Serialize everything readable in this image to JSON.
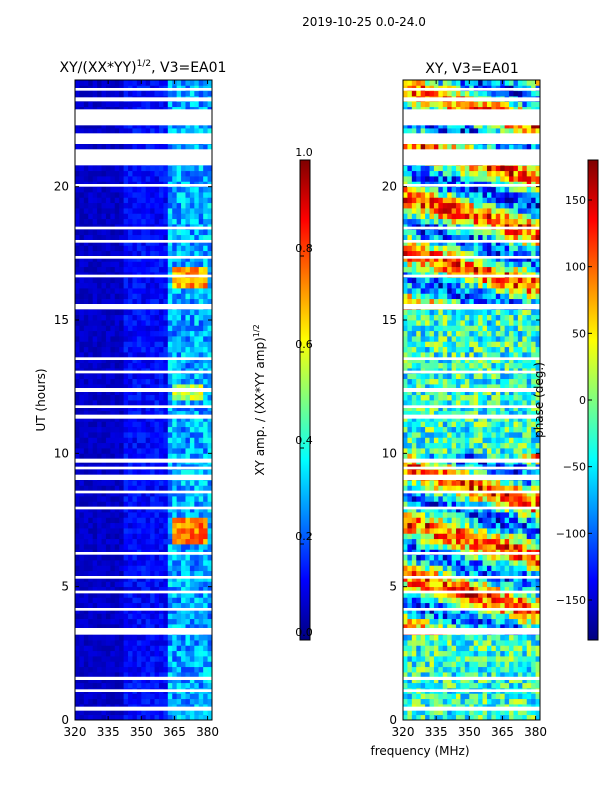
{
  "figure": {
    "suptitle": "2019-10-25 0.0-24.0",
    "xlabel": "frequency (MHz)"
  },
  "colors": {
    "background": "#ffffff",
    "axis": "#000000",
    "jet": [
      "#00007f",
      "#0000ff",
      "#007fff",
      "#00ffff",
      "#7fff7f",
      "#ffff00",
      "#ff7f00",
      "#ff0000",
      "#7f0000"
    ]
  },
  "chart_data": [
    {
      "type": "heatmap",
      "title_main": "XY/(XX*YY)",
      "title_exponent": "1/2",
      "title_suffix": ", V3=EA01",
      "xlabel": "",
      "ylabel": "UT (hours)",
      "xlim": [
        320,
        382
      ],
      "ylim": [
        0,
        24
      ],
      "x_ticks": [
        "320",
        "335",
        "350",
        "365",
        "380"
      ],
      "y_ticks": [
        "0",
        "5",
        "10",
        "15",
        "20"
      ],
      "colorbar": {
        "label_main": "XY amp. / (XX*YY amp)",
        "label_exponent": "1/2",
        "range": [
          0.0,
          1.0
        ],
        "ticks": [
          "0.0",
          "0.2",
          "0.4",
          "0.6",
          "0.8",
          "1.0"
        ]
      },
      "flagged_hour_spans": [
        [
          0.35,
          0.5
        ],
        [
          1.05,
          1.15
        ],
        [
          1.5,
          1.62
        ],
        [
          3.2,
          3.45
        ],
        [
          4.1,
          4.2
        ],
        [
          4.75,
          4.85
        ],
        [
          5.3,
          5.4
        ],
        [
          6.2,
          6.3
        ],
        [
          7.9,
          8.0
        ],
        [
          8.5,
          8.6
        ],
        [
          9.0,
          9.2
        ],
        [
          9.4,
          9.5
        ],
        [
          9.65,
          9.8
        ],
        [
          11.3,
          11.45
        ],
        [
          11.7,
          11.8
        ],
        [
          12.3,
          12.45
        ],
        [
          13.0,
          13.1
        ],
        [
          13.5,
          13.6
        ],
        [
          15.4,
          15.6
        ],
        [
          16.6,
          16.7
        ],
        [
          17.3,
          17.4
        ],
        [
          17.9,
          18.0
        ],
        [
          18.4,
          18.5
        ],
        [
          20.0,
          20.1
        ],
        [
          20.8,
          21.4
        ],
        [
          21.6,
          22.0
        ],
        [
          22.3,
          22.9
        ],
        [
          23.2,
          23.35
        ],
        [
          23.6,
          23.7
        ]
      ],
      "bright_regions": [
        {
          "freq_range": [
            364,
            380
          ],
          "hour_range": [
            6.7,
            7.5
          ],
          "value": 0.75
        },
        {
          "freq_range": [
            364,
            380
          ],
          "hour_range": [
            16.3,
            17.0
          ],
          "value": 0.72
        },
        {
          "freq_range": [
            364,
            378
          ],
          "hour_range": [
            12.1,
            12.5
          ],
          "value": 0.55
        }
      ]
    },
    {
      "type": "heatmap",
      "title_main": "XY",
      "title_exponent": "",
      "title_suffix": ", V3=EA01",
      "xlabel": "",
      "ylabel": "",
      "xlim": [
        320,
        382
      ],
      "ylim": [
        0,
        24
      ],
      "x_ticks": [
        "320",
        "335",
        "350",
        "365",
        "380"
      ],
      "y_ticks": [
        "0",
        "5",
        "10",
        "15",
        "20"
      ],
      "colorbar": {
        "label_main": "phase (deg.)",
        "label_exponent": "",
        "range": [
          -180,
          180
        ],
        "ticks": [
          "−150",
          "−100",
          "−50",
          "0",
          "50",
          "100",
          "150"
        ]
      },
      "flagged_hour_spans": [
        [
          0.35,
          0.5
        ],
        [
          1.05,
          1.15
        ],
        [
          1.5,
          1.62
        ],
        [
          3.2,
          3.45
        ],
        [
          4.1,
          4.2
        ],
        [
          4.75,
          4.85
        ],
        [
          5.3,
          5.4
        ],
        [
          6.2,
          6.3
        ],
        [
          7.9,
          8.0
        ],
        [
          8.5,
          8.6
        ],
        [
          9.0,
          9.2
        ],
        [
          9.4,
          9.5
        ],
        [
          9.65,
          9.8
        ],
        [
          11.3,
          11.45
        ],
        [
          11.7,
          11.8
        ],
        [
          12.3,
          12.45
        ],
        [
          13.0,
          13.1
        ],
        [
          13.5,
          13.6
        ],
        [
          15.4,
          15.6
        ],
        [
          16.6,
          16.7
        ],
        [
          17.3,
          17.4
        ],
        [
          17.9,
          18.0
        ],
        [
          18.4,
          18.5
        ],
        [
          20.0,
          20.1
        ],
        [
          20.8,
          21.4
        ],
        [
          21.6,
          22.0
        ],
        [
          22.3,
          22.9
        ],
        [
          23.2,
          23.35
        ],
        [
          23.6,
          23.7
        ]
      ]
    }
  ]
}
